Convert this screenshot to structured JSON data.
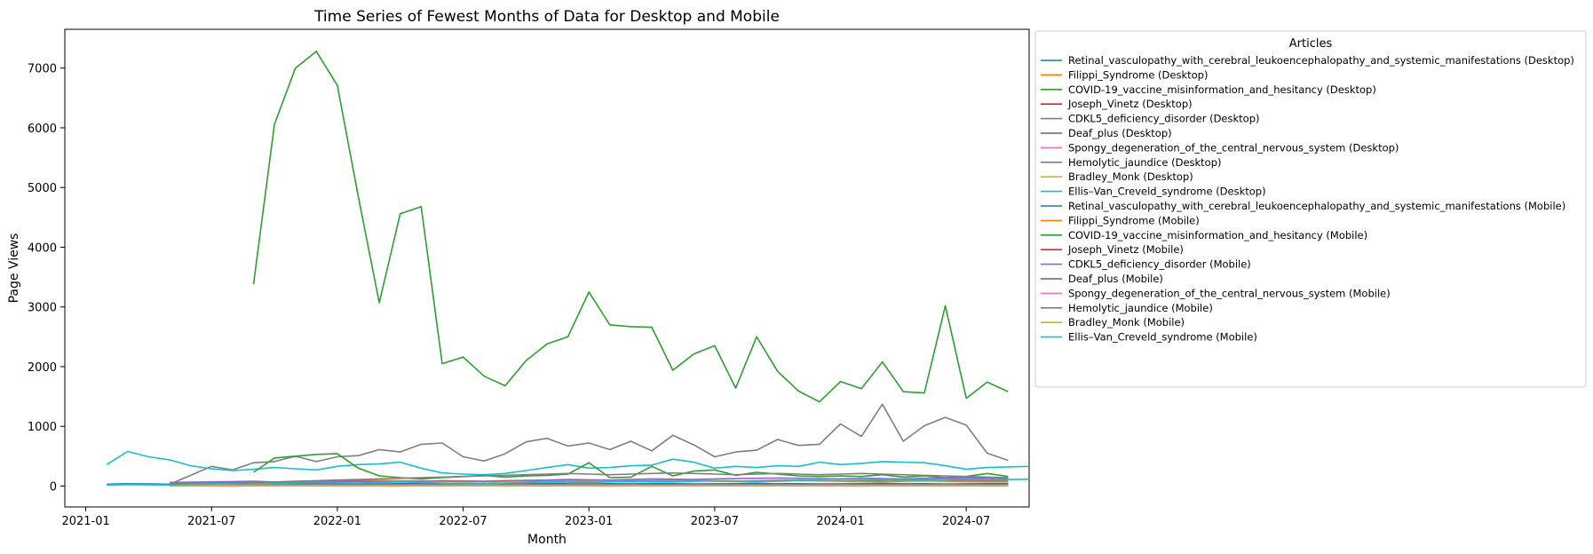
{
  "chart_data": {
    "type": "line",
    "title": "Time Series of Fewest Months of Data for Desktop and Mobile",
    "xlabel": "Month",
    "ylabel": "Page Views",
    "xlim": [
      "2020-12-01",
      "2024-10-01"
    ],
    "ylim": [
      -350,
      7650
    ],
    "x_ticks": [
      "2021-01",
      "2021-07",
      "2022-01",
      "2022-07",
      "2023-01",
      "2023-07",
      "2024-01",
      "2024-07"
    ],
    "y_ticks": [
      0,
      1000,
      2000,
      3000,
      4000,
      5000,
      6000,
      7000
    ],
    "grid": false,
    "legend": {
      "title": "Articles",
      "placement": "outside-right"
    },
    "series": [
      {
        "name": "Retinal_vasculopathy_with_cerebral_leukoencephalopathy_and_systemic_manifestations (Desktop)",
        "color": "#1f77b4",
        "start": "2021-02",
        "values": [
          30,
          40,
          35,
          30,
          32,
          35,
          38,
          40,
          36,
          42,
          45,
          40,
          38,
          36,
          40,
          42,
          45,
          40,
          38,
          35,
          40,
          42,
          38,
          36,
          40,
          38,
          42,
          40,
          36,
          38,
          40,
          42,
          38,
          40,
          36,
          38,
          40,
          42,
          38,
          40,
          36,
          38,
          40,
          42
        ]
      },
      {
        "name": "Filippi_Syndrome (Desktop)",
        "color": "#ff7f0e",
        "start": "2021-05",
        "values": [
          15,
          18,
          20,
          16,
          14,
          18,
          20,
          22,
          18,
          16,
          20,
          18,
          16,
          18,
          20,
          22,
          18,
          16,
          18,
          20,
          18,
          16,
          18,
          20,
          22,
          18,
          16,
          18,
          20,
          18,
          16,
          18,
          20,
          18,
          16,
          18,
          20,
          18,
          16,
          18,
          20
        ]
      },
      {
        "name": "COVID-19_vaccine_misinformation_and_hesitancy (Desktop)",
        "color": "#2ca02c",
        "start": "2021-09",
        "values": [
          3380,
          6060,
          7000,
          7280,
          6710,
          4850,
          3070,
          4560,
          4680,
          2050,
          2160,
          1840,
          1680,
          2100,
          2380,
          2500,
          3250,
          2700,
          2670,
          2660,
          1940,
          2210,
          2350,
          1640,
          2500,
          1920,
          1590,
          1410,
          1750,
          1630,
          2080,
          1580,
          1560,
          3020,
          1470,
          1740,
          1580
        ]
      },
      {
        "name": "Joseph_Vinetz (Desktop)",
        "color": "#d62728",
        "start": "2021-05",
        "values": [
          5,
          6,
          5,
          4,
          6,
          5,
          7,
          6,
          5,
          6,
          5,
          4,
          6,
          5,
          6,
          7,
          5,
          6,
          5,
          6,
          5,
          4,
          6,
          5,
          6,
          5,
          7,
          6,
          5,
          6,
          5,
          6,
          5,
          4,
          6,
          5,
          6,
          5,
          6,
          5,
          5
        ]
      },
      {
        "name": "CDKL5_deficiency_disorder (Desktop)",
        "color": "#9467bd",
        "start": "2021-05",
        "values": [
          40,
          45,
          50,
          55,
          60,
          65,
          70,
          75,
          80,
          75,
          70,
          80,
          85,
          80,
          75,
          70,
          80,
          85,
          90,
          85,
          80,
          75,
          85,
          90,
          95,
          90,
          85,
          80,
          90,
          95,
          100,
          95,
          90,
          85,
          95,
          100,
          105,
          100,
          95,
          90,
          95
        ]
      },
      {
        "name": "Deaf_plus (Desktop)",
        "color": "#8c564b",
        "start": "2021-05",
        "values": [
          8,
          10,
          9,
          8,
          10,
          12,
          10,
          9,
          8,
          10,
          11,
          10,
          9,
          8,
          10,
          12,
          10,
          9,
          8,
          10,
          11,
          10,
          9,
          8,
          10,
          12,
          10,
          9,
          8,
          10,
          11,
          10,
          9,
          8,
          10,
          12,
          10,
          9,
          8,
          10,
          10
        ]
      },
      {
        "name": "Spongy_degeneration_of_the_central_nervous_system (Desktop)",
        "color": "#e377c2",
        "start": "2021-05",
        "values": [
          20,
          22,
          25,
          24,
          22,
          20,
          24,
          26,
          25,
          24,
          22,
          24,
          26,
          25,
          24,
          22,
          24,
          26,
          25,
          24,
          22,
          24,
          26,
          25,
          24,
          22,
          24,
          26,
          25,
          24,
          22,
          24,
          26,
          25,
          24,
          22,
          24,
          26,
          25,
          24,
          24
        ]
      },
      {
        "name": "Hemolytic_jaundice (Desktop)",
        "color": "#7f7f7f",
        "start": "2021-05",
        "values": [
          30,
          180,
          330,
          270,
          390,
          410,
          500,
          410,
          490,
          510,
          610,
          570,
          700,
          720,
          490,
          420,
          540,
          740,
          800,
          670,
          720,
          610,
          750,
          590,
          850,
          690,
          490,
          570,
          600,
          780,
          680,
          700,
          1040,
          830,
          1370,
          750,
          1010,
          1150,
          1020,
          550,
          430
        ]
      },
      {
        "name": "Bradley_Monk (Desktop)",
        "color": "#bcbd22",
        "start": "2021-05",
        "values": [
          3,
          4,
          3,
          2,
          4,
          3,
          5,
          4,
          3,
          4,
          3,
          2,
          4,
          3,
          4,
          5,
          3,
          4,
          3,
          4,
          3,
          2,
          4,
          3,
          4,
          3,
          5,
          4,
          3,
          4,
          3,
          4,
          3,
          2,
          4,
          3,
          4,
          3,
          4,
          3,
          3
        ]
      },
      {
        "name": "Ellis–Van_Creveld_syndrome (Desktop)",
        "color": "#17becf",
        "start": "2021-02",
        "values": [
          360,
          580,
          490,
          440,
          340,
          290,
          260,
          280,
          310,
          290,
          270,
          330,
          360,
          370,
          400,
          300,
          220,
          200,
          190,
          210,
          260,
          310,
          360,
          300,
          310,
          340,
          350,
          450,
          400,
          300,
          330,
          310,
          340,
          330,
          400,
          360,
          380,
          410,
          400,
          390,
          340,
          280,
          310,
          320,
          330
        ]
      },
      {
        "name": "Retinal_vasculopathy_with_cerebral_leukoencephalopathy_and_systemic_manifestations (Mobile)",
        "color": "#1f77b4",
        "start": "2021-02",
        "values": [
          20,
          25,
          22,
          20,
          24,
          26,
          25,
          24,
          22,
          24,
          26,
          25,
          24,
          22,
          24,
          26,
          25,
          24,
          22,
          24,
          26,
          25,
          24,
          22,
          24,
          26,
          25,
          24,
          22,
          24,
          26,
          25,
          24,
          22,
          24,
          26,
          25,
          24,
          22,
          24,
          26,
          25,
          24,
          24
        ]
      },
      {
        "name": "Filippi_Syndrome (Mobile)",
        "color": "#ff7f0e",
        "start": "2021-05",
        "values": [
          30,
          35,
          40,
          45,
          50,
          60,
          70,
          80,
          90,
          100,
          95,
          90,
          85,
          80,
          75,
          70,
          80,
          90,
          95,
          85,
          80,
          75,
          70,
          80,
          90,
          85,
          80,
          75,
          70,
          80,
          90,
          85,
          80,
          75,
          70,
          80,
          85,
          80,
          75,
          70,
          75
        ]
      },
      {
        "name": "COVID-19_vaccine_misinformation_and_hesitancy (Mobile)",
        "color": "#2ca02c",
        "start": "2021-09",
        "values": [
          230,
          470,
          500,
          530,
          540,
          300,
          170,
          140,
          120,
          140,
          160,
          180,
          150,
          170,
          180,
          200,
          390,
          140,
          150,
          330,
          170,
          250,
          270,
          180,
          230,
          200,
          170,
          160,
          170,
          160,
          190,
          150,
          170,
          140,
          160,
          210,
          160
        ]
      },
      {
        "name": "Joseph_Vinetz (Mobile)",
        "color": "#d62728",
        "start": "2021-05",
        "values": [
          4,
          5,
          4,
          3,
          5,
          4,
          6,
          5,
          4,
          5,
          4,
          3,
          5,
          4,
          5,
          6,
          4,
          5,
          4,
          5,
          4,
          3,
          5,
          4,
          5,
          4,
          6,
          5,
          4,
          5,
          4,
          5,
          4,
          3,
          5,
          4,
          5,
          4,
          5,
          4,
          4
        ]
      },
      {
        "name": "CDKL5_deficiency_disorder (Mobile)",
        "color": "#9467bd",
        "start": "2021-05",
        "values": [
          60,
          65,
          70,
          75,
          80,
          70,
          65,
          70,
          80,
          85,
          75,
          70,
          80,
          90,
          85,
          80,
          90,
          95,
          100,
          110,
          105,
          100,
          110,
          120,
          115,
          110,
          120,
          125,
          130,
          135,
          130,
          125,
          120,
          130,
          125,
          120,
          130,
          135,
          140,
          130,
          125
        ]
      },
      {
        "name": "Deaf_plus (Mobile)",
        "color": "#8c564b",
        "start": "2021-05",
        "values": [
          10,
          12,
          11,
          10,
          12,
          14,
          12,
          11,
          10,
          12,
          13,
          12,
          11,
          10,
          12,
          14,
          12,
          11,
          10,
          12,
          13,
          12,
          11,
          10,
          12,
          14,
          12,
          11,
          10,
          12,
          13,
          12,
          11,
          10,
          12,
          14,
          12,
          11,
          10,
          12,
          12
        ]
      },
      {
        "name": "Spongy_degeneration_of_the_central_nervous_system (Mobile)",
        "color": "#e377c2",
        "start": "2021-05",
        "values": [
          15,
          16,
          18,
          17,
          16,
          15,
          17,
          19,
          18,
          17,
          16,
          17,
          19,
          18,
          17,
          16,
          17,
          19,
          18,
          17,
          16,
          17,
          19,
          18,
          17,
          16,
          17,
          19,
          18,
          17,
          16,
          17,
          19,
          18,
          17,
          16,
          17,
          19,
          18,
          17,
          17
        ]
      },
      {
        "name": "Hemolytic_jaundice (Mobile)",
        "color": "#7f7f7f",
        "start": "2021-05",
        "values": [
          40,
          45,
          50,
          55,
          60,
          70,
          80,
          90,
          100,
          110,
          120,
          130,
          140,
          150,
          160,
          170,
          180,
          190,
          200,
          210,
          200,
          190,
          200,
          210,
          220,
          210,
          200,
          190,
          200,
          210,
          200,
          190,
          200,
          210,
          200,
          190,
          180,
          170,
          160,
          150,
          140
        ]
      },
      {
        "name": "Bradley_Monk (Mobile)",
        "color": "#bcbd22",
        "start": "2021-05",
        "values": [
          2,
          3,
          2,
          2,
          3,
          2,
          4,
          3,
          2,
          3,
          2,
          2,
          3,
          2,
          3,
          4,
          2,
          3,
          2,
          3,
          2,
          2,
          3,
          2,
          3,
          2,
          4,
          3,
          2,
          3,
          2,
          3,
          2,
          2,
          3,
          2,
          3,
          2,
          3,
          2,
          2
        ]
      },
      {
        "name": "Ellis–Van_Creveld_syndrome (Mobile)",
        "color": "#17becf",
        "start": "2021-02",
        "values": [
          20,
          30,
          25,
          20,
          30,
          40,
          35,
          30,
          40,
          50,
          60,
          55,
          50,
          60,
          70,
          60,
          50,
          45,
          40,
          50,
          60,
          70,
          65,
          60,
          70,
          80,
          75,
          70,
          80,
          90,
          85,
          80,
          90,
          100,
          95,
          90,
          100,
          110,
          105,
          100,
          110,
          120,
          115,
          110,
          115
        ]
      }
    ]
  }
}
